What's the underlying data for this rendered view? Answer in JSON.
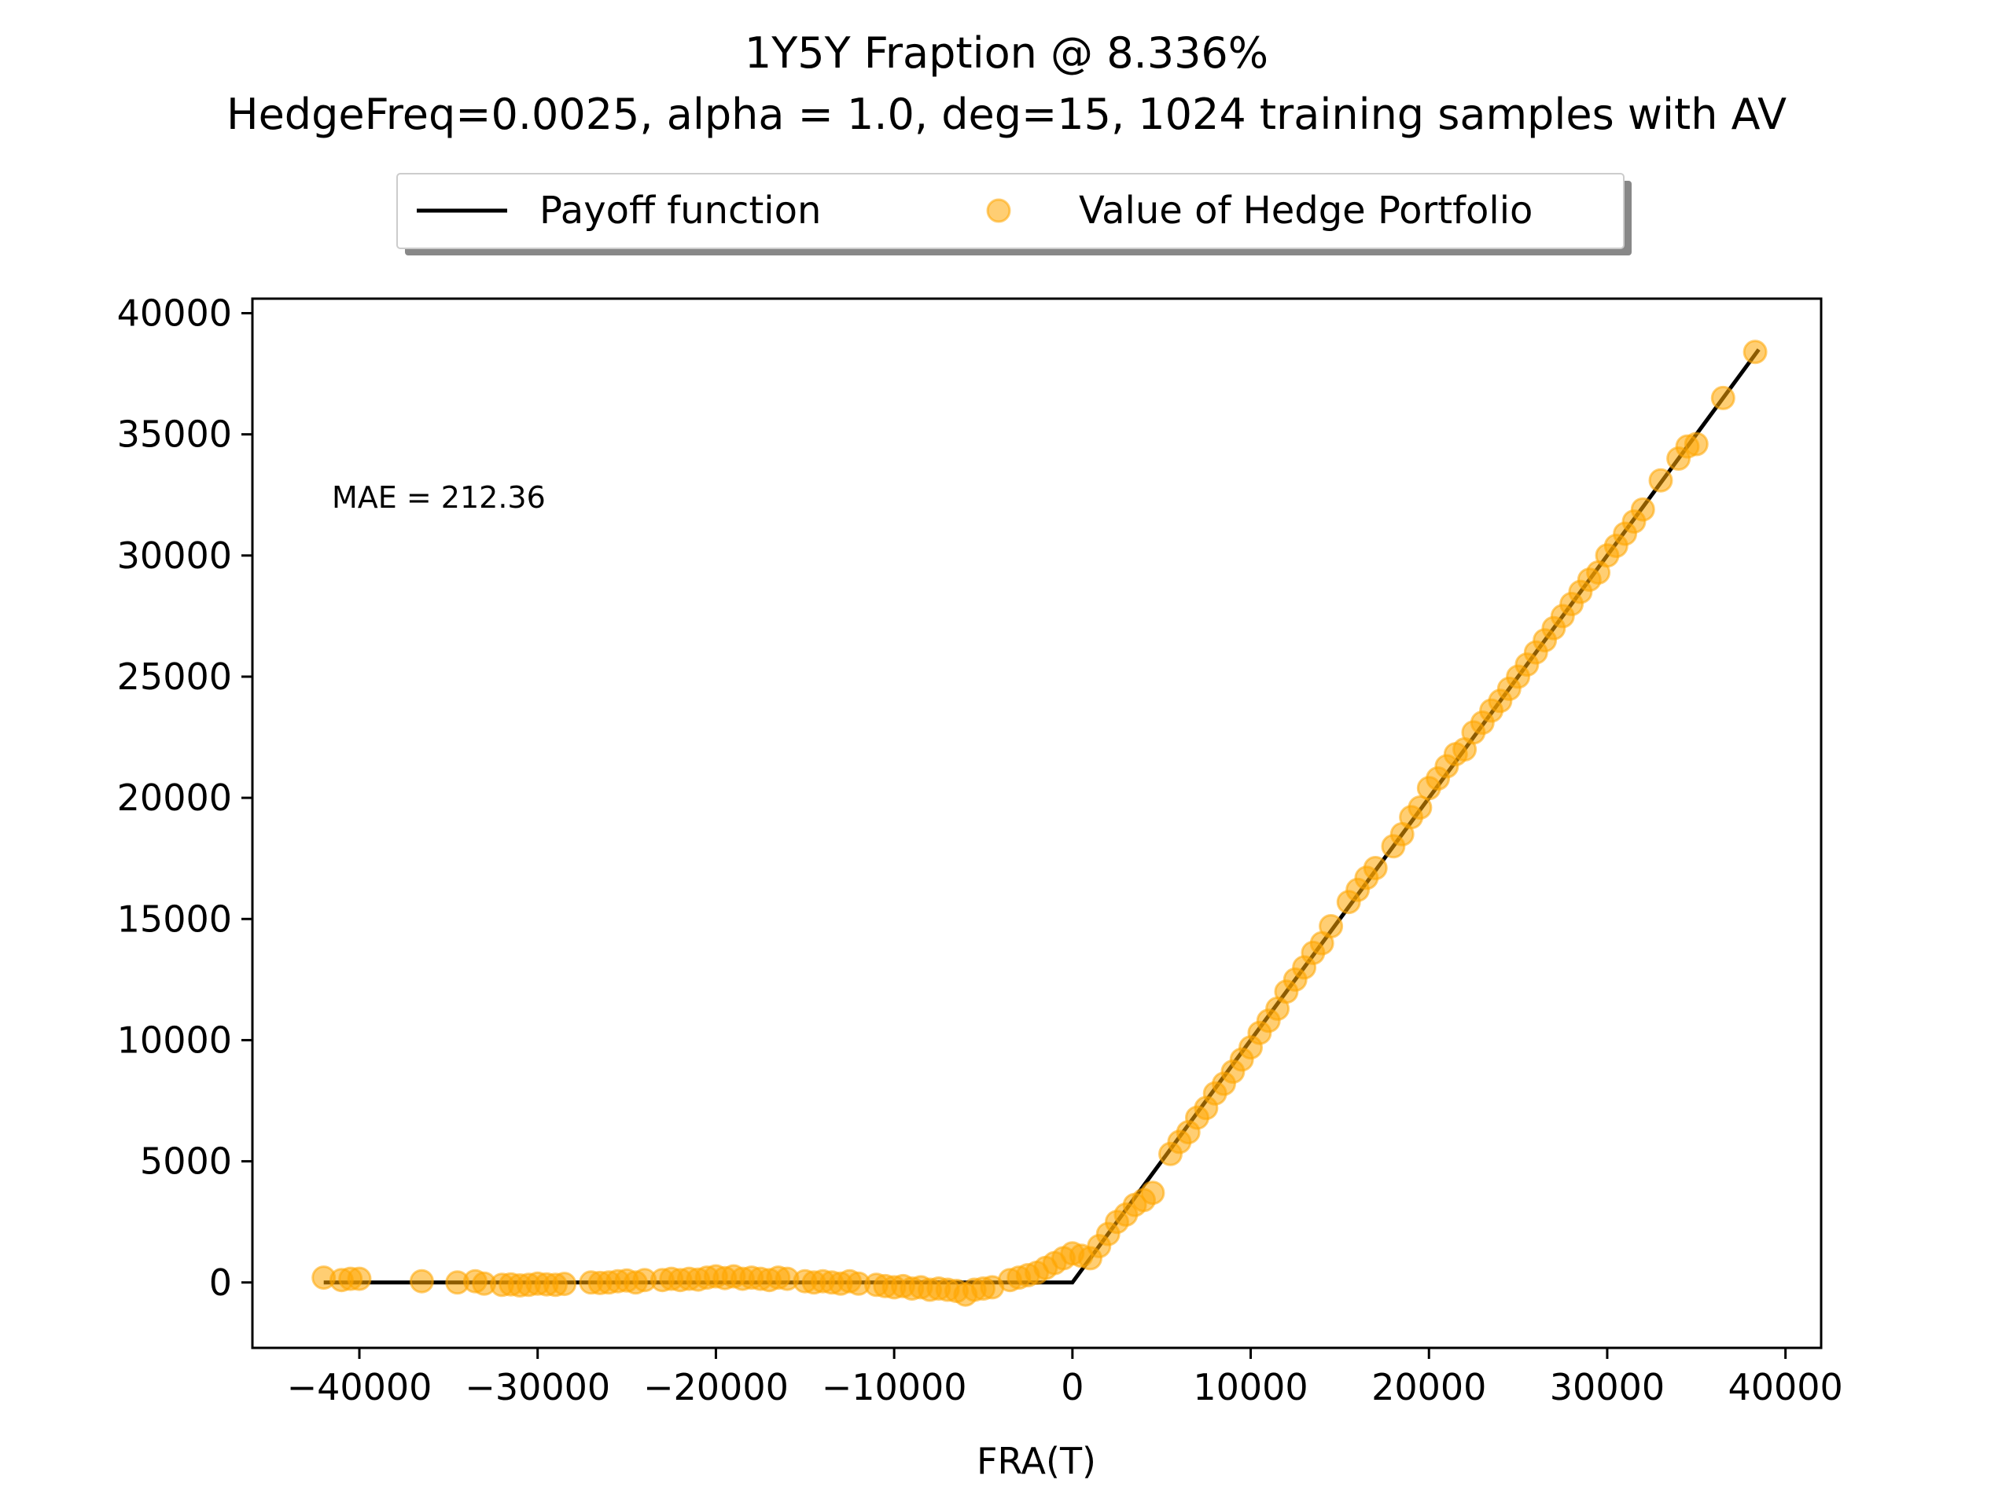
{
  "chart_data": {
    "type": "scatter",
    "title": "1Y5Y Fraption @ 8.336%",
    "subtitle": "HedgeFreq=0.0025, alpha = 1.0, deg=15, 1024 training samples with AV",
    "xlabel": "FRA(T)",
    "ylabel": "",
    "xlim": [
      -46000,
      42000
    ],
    "ylim": [
      -2700,
      40600
    ],
    "xticks": [
      -40000,
      -30000,
      -20000,
      -10000,
      0,
      10000,
      20000,
      30000,
      40000
    ],
    "xtick_labels": [
      "−40000",
      "−30000",
      "−20000",
      "−10000",
      "0",
      "10000",
      "20000",
      "30000",
      "40000"
    ],
    "yticks": [
      0,
      5000,
      10000,
      15000,
      20000,
      25000,
      30000,
      35000,
      40000
    ],
    "ytick_labels": [
      "0",
      "5000",
      "10000",
      "15000",
      "20000",
      "25000",
      "30000",
      "35000",
      "40000"
    ],
    "grid": false,
    "legend_placement": "top-center-outside",
    "annotation": "MAE = 212.36",
    "series": [
      {
        "name": "Payoff function",
        "kind": "line",
        "color": "#000000",
        "x": [
          -42000,
          0,
          38500
        ],
        "y": [
          0,
          0,
          38500
        ]
      },
      {
        "name": "Value of Hedge Portfolio",
        "kind": "scatter",
        "color": "#ffa500",
        "x": [
          -42000,
          -41000,
          -40500,
          -40000,
          -36500,
          -34500,
          -33500,
          -33000,
          -32000,
          -31500,
          -31000,
          -30500,
          -30000,
          -29500,
          -29000,
          -28500,
          -27000,
          -26500,
          -26000,
          -25500,
          -25000,
          -24500,
          -24000,
          -23000,
          -22500,
          -22000,
          -21500,
          -21000,
          -20500,
          -20000,
          -19500,
          -19000,
          -18500,
          -18000,
          -17500,
          -17000,
          -16500,
          -16000,
          -15000,
          -14500,
          -14000,
          -13500,
          -13000,
          -12500,
          -12000,
          -11000,
          -10500,
          -10000,
          -9500,
          -9000,
          -8500,
          -8000,
          -7500,
          -7000,
          -6500,
          -6000,
          -5500,
          -5000,
          -4500,
          -3500,
          -3000,
          -2500,
          -2000,
          -1500,
          -1000,
          -500,
          0,
          500,
          1000,
          1500,
          2000,
          2500,
          3000,
          3500,
          4000,
          4500,
          5500,
          6000,
          6500,
          7000,
          7500,
          8000,
          8500,
          9000,
          9500,
          10000,
          10500,
          11000,
          11500,
          12000,
          12500,
          13000,
          13500,
          14000,
          14500,
          15500,
          16000,
          16500,
          17000,
          18000,
          18500,
          19000,
          19500,
          20000,
          20500,
          21000,
          21500,
          22000,
          22500,
          23000,
          23500,
          24000,
          24500,
          25000,
          25500,
          26000,
          26500,
          27000,
          27500,
          28000,
          28500,
          29000,
          29500,
          30000,
          30500,
          31000,
          31500,
          32000,
          33000,
          34000,
          34500,
          35000,
          36500,
          38300
        ],
        "y": [
          200,
          100,
          150,
          150,
          50,
          0,
          50,
          -50,
          -100,
          -80,
          -120,
          -100,
          -50,
          -80,
          -100,
          -60,
          0,
          -20,
          0,
          50,
          80,
          0,
          100,
          100,
          150,
          100,
          150,
          120,
          200,
          250,
          180,
          250,
          150,
          200,
          150,
          100,
          200,
          150,
          50,
          0,
          50,
          0,
          -50,
          50,
          -50,
          -100,
          -150,
          -200,
          -150,
          -250,
          -200,
          -300,
          -250,
          -300,
          -350,
          -500,
          -300,
          -250,
          -200,
          100,
          200,
          300,
          400,
          600,
          800,
          1000,
          1200,
          1100,
          1000,
          1500,
          2000,
          2500,
          2800,
          3200,
          3400,
          3700,
          5300,
          5800,
          6200,
          6800,
          7200,
          7800,
          8200,
          8700,
          9200,
          9700,
          10300,
          10800,
          11300,
          12000,
          12500,
          13000,
          13600,
          14000,
          14700,
          15700,
          16200,
          16700,
          17100,
          18000,
          18500,
          19200,
          19600,
          20400,
          20800,
          21300,
          21800,
          22000,
          22700,
          23100,
          23600,
          24000,
          24500,
          25000,
          25500,
          26000,
          26500,
          27000,
          27500,
          28000,
          28500,
          29000,
          29300,
          30000,
          30400,
          30900,
          31400,
          31900,
          33100,
          34000,
          34500,
          34600,
          36500,
          38400
        ]
      }
    ]
  }
}
